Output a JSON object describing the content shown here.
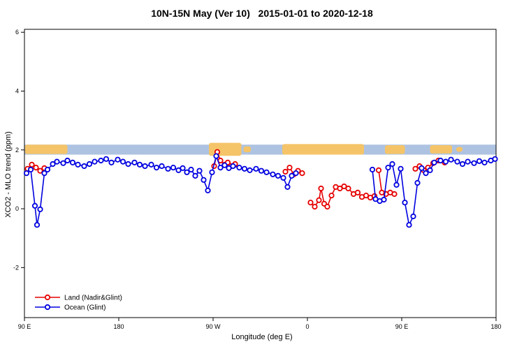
{
  "chart_data": {
    "type": "line",
    "title": "10N-15N May (Ver 10)   2015-01-01 to 2020-12-18",
    "xlabel": "Longitude (deg E)",
    "ylabel": "XCO2 - MLO trend (ppm)",
    "xlim": [
      90,
      540
    ],
    "ylim": [
      -3.7,
      6.1
    ],
    "yticks": [
      -2,
      0,
      2,
      4,
      6
    ],
    "xticks": [
      {
        "value": 90,
        "label": "90 E"
      },
      {
        "value": 180,
        "label": "180"
      },
      {
        "value": 270,
        "label": "90 W"
      },
      {
        "value": 360,
        "label": "0"
      },
      {
        "value": 450,
        "label": "90 E"
      },
      {
        "value": 540,
        "label": "180"
      }
    ],
    "grid": false,
    "legend_position": "bottom-left",
    "reference_band": {
      "y0": 1.84,
      "y1": 2.18,
      "color": "#aec3e1"
    },
    "land_overlay": {
      "color": "#f5c468",
      "patches": [
        [
          90.5,
          131,
          1.86,
          2.18
        ],
        [
          266,
          297,
          1.8,
          2.24
        ],
        [
          299,
          306,
          1.92,
          2.12
        ],
        [
          336,
          414,
          1.84,
          2.2
        ],
        [
          434,
          453,
          1.86,
          2.16
        ],
        [
          477,
          498,
          1.88,
          2.16
        ],
        [
          502,
          508,
          1.94,
          2.1
        ]
      ]
    },
    "series": [
      {
        "name": "Land (Nadir&Glint)",
        "color": "#e60000",
        "segments": [
          [
            [
              93,
              1.36
            ],
            [
              97,
              1.5
            ],
            [
              101,
              1.4
            ],
            [
              105,
              1.29
            ],
            [
              109,
              1.38
            ]
          ],
          [
            [
              271,
              1.45
            ],
            [
              274,
              1.93
            ],
            [
              277,
              1.64
            ],
            [
              281,
              1.5
            ],
            [
              284,
              1.57
            ],
            [
              287,
              1.45
            ],
            [
              291,
              1.52
            ]
          ],
          [
            [
              339,
              1.26
            ],
            [
              343,
              1.4
            ],
            [
              347,
              1.17
            ],
            [
              351,
              1.29
            ],
            [
              355,
              1.21
            ]
          ],
          [
            [
              363,
              0.21
            ],
            [
              367,
              0.07
            ],
            [
              371,
              0.29
            ],
            [
              373,
              0.69
            ],
            [
              376,
              0.17
            ],
            [
              379,
              0.07
            ],
            [
              383,
              0.45
            ],
            [
              387,
              0.74
            ],
            [
              391,
              0.69
            ],
            [
              395,
              0.76
            ],
            [
              399,
              0.69
            ],
            [
              404,
              0.5
            ],
            [
              408,
              0.55
            ],
            [
              412,
              0.4
            ],
            [
              416,
              0.45
            ],
            [
              420,
              0.38
            ],
            [
              424,
              0.43
            ]
          ],
          [
            [
              428,
              1.31
            ],
            [
              431,
              0.55
            ],
            [
              435,
              0.5
            ],
            [
              439,
              0.55
            ],
            [
              443,
              0.5
            ]
          ],
          [
            [
              463,
              1.36
            ],
            [
              467,
              1.45
            ],
            [
              471,
              1.31
            ],
            [
              475,
              1.4
            ],
            [
              480,
              1.55
            ],
            [
              485,
              1.64
            ],
            [
              491,
              1.57
            ]
          ]
        ]
      },
      {
        "name": "Ocean (Glint)",
        "color": "#0000e0",
        "segments": [
          [
            [
              92,
              1.21
            ],
            [
              96,
              1.33
            ],
            [
              100,
              0.1
            ],
            [
              102,
              -0.55
            ],
            [
              105,
              -0.02
            ],
            [
              109,
              1.21
            ],
            [
              112,
              1.33
            ],
            [
              117,
              1.52
            ],
            [
              121,
              1.6
            ],
            [
              127,
              1.55
            ],
            [
              131,
              1.64
            ],
            [
              136,
              1.57
            ],
            [
              141,
              1.5
            ],
            [
              147,
              1.45
            ],
            [
              152,
              1.52
            ],
            [
              157,
              1.6
            ],
            [
              163,
              1.64
            ],
            [
              168,
              1.69
            ],
            [
              173,
              1.57
            ],
            [
              179,
              1.67
            ],
            [
              184,
              1.6
            ],
            [
              189,
              1.52
            ],
            [
              195,
              1.57
            ],
            [
              200,
              1.5
            ],
            [
              205,
              1.45
            ],
            [
              211,
              1.5
            ],
            [
              216,
              1.4
            ],
            [
              221,
              1.45
            ],
            [
              227,
              1.36
            ],
            [
              232,
              1.4
            ],
            [
              237,
              1.31
            ],
            [
              241,
              1.38
            ],
            [
              245,
              1.24
            ],
            [
              249,
              1.33
            ],
            [
              253,
              1.12
            ],
            [
              257,
              1.29
            ],
            [
              261,
              0.98
            ],
            [
              265,
              0.62
            ],
            [
              269,
              1.24
            ],
            [
              273,
              1.79
            ],
            [
              277,
              1.4
            ],
            [
              281,
              1.48
            ],
            [
              285,
              1.38
            ],
            [
              289,
              1.45
            ],
            [
              295,
              1.4
            ],
            [
              300,
              1.36
            ],
            [
              305,
              1.31
            ],
            [
              311,
              1.36
            ],
            [
              316,
              1.29
            ],
            [
              321,
              1.24
            ],
            [
              327,
              1.17
            ],
            [
              332,
              1.12
            ],
            [
              337,
              1.05
            ],
            [
              341,
              0.74
            ],
            [
              345,
              1.12
            ],
            [
              349,
              1.21
            ]
          ],
          [
            [
              422,
              1.33
            ],
            [
              425,
              0.33
            ],
            [
              429,
              0.26
            ],
            [
              433,
              0.31
            ],
            [
              437,
              1.4
            ],
            [
              441,
              1.52
            ],
            [
              445,
              0.81
            ],
            [
              449,
              1.36
            ],
            [
              453,
              0.21
            ],
            [
              457,
              -0.55
            ],
            [
              461,
              -0.26
            ],
            [
              465,
              0.88
            ],
            [
              469,
              1.38
            ],
            [
              473,
              1.21
            ],
            [
              477,
              1.31
            ],
            [
              481,
              1.57
            ],
            [
              487,
              1.64
            ],
            [
              492,
              1.6
            ],
            [
              497,
              1.67
            ],
            [
              503,
              1.6
            ],
            [
              508,
              1.52
            ],
            [
              513,
              1.6
            ],
            [
              519,
              1.55
            ],
            [
              524,
              1.62
            ],
            [
              529,
              1.57
            ],
            [
              535,
              1.64
            ],
            [
              539,
              1.69
            ]
          ]
        ]
      }
    ],
    "legend": [
      "Land (Nadir&Glint)",
      "Ocean (Glint)"
    ]
  }
}
